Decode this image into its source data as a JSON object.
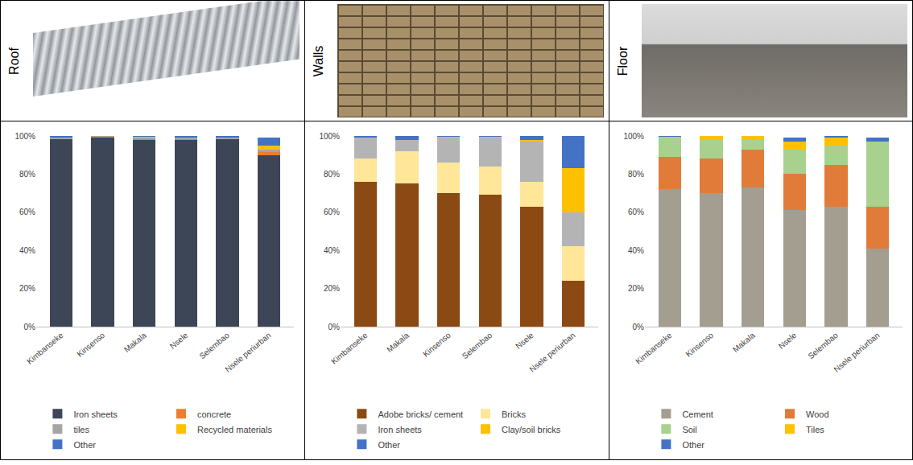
{
  "chart_data": [
    {
      "type": "bar",
      "title": "Roof",
      "stacked": true,
      "grid": false,
      "legend": "bottom",
      "categories": [
        "Kimbanseke",
        "Kinsenso",
        "Makala",
        "Nsele",
        "Selembao",
        "Nsele periurban"
      ],
      "ylim": [
        0,
        100
      ],
      "yticks": [
        {
          "value": 0,
          "label": "0%"
        },
        {
          "value": 20,
          "label": "20%"
        },
        {
          "value": 40,
          "label": "40%"
        },
        {
          "value": 60,
          "label": "60%"
        },
        {
          "value": 80,
          "label": "80%"
        },
        {
          "value": 100,
          "label": "100%"
        }
      ],
      "series": [
        {
          "name": "Iron sheets",
          "color": "#3c4657",
          "values": [
            98.5,
            99,
            98,
            98,
            98.5,
            90
          ]
        },
        {
          "name": "concrete",
          "color": "#ed7d31",
          "values": [
            0,
            0.5,
            0.5,
            0.5,
            0,
            1.5
          ]
        },
        {
          "name": "tiles",
          "color": "#a5a5a5",
          "values": [
            0.5,
            0.5,
            0.5,
            0.5,
            0.5,
            1.5
          ]
        },
        {
          "name": "Recycled materials",
          "color": "#ffc000",
          "values": [
            0,
            0,
            0.5,
            0,
            0,
            2
          ]
        },
        {
          "name": "Other",
          "color": "#4472c4",
          "values": [
            1,
            0,
            0.5,
            1,
            1,
            4
          ]
        }
      ]
    },
    {
      "type": "bar",
      "title": "Walls",
      "stacked": true,
      "grid": false,
      "legend": "bottom",
      "categories": [
        "Kimbanseke",
        "Makala",
        "Kinsenso",
        "Selembao",
        "Nsele",
        "Nsele periurban"
      ],
      "ylim": [
        0,
        100
      ],
      "yticks": [
        {
          "value": 0,
          "label": "0%"
        },
        {
          "value": 20,
          "label": "20%"
        },
        {
          "value": 40,
          "label": "40%"
        },
        {
          "value": 60,
          "label": "60%"
        },
        {
          "value": 80,
          "label": "80%"
        },
        {
          "value": 100,
          "label": "100%"
        }
      ],
      "series": [
        {
          "name": "Adobe bricks/ cement",
          "color": "#8b4a14",
          "values": [
            76,
            75,
            70,
            69,
            63,
            24
          ]
        },
        {
          "name": "Bricks",
          "color": "#ffe699",
          "values": [
            12,
            17,
            16,
            15,
            13,
            18
          ]
        },
        {
          "name": "Iron sheets",
          "color": "#b4b4b4",
          "values": [
            11,
            6,
            13,
            15,
            21,
            18
          ]
        },
        {
          "name": "Clay/soil bricks",
          "color": "#ffc000",
          "values": [
            0,
            0,
            0.5,
            0.5,
            1,
            23
          ]
        },
        {
          "name": "Other",
          "color": "#4472c4",
          "values": [
            1,
            2,
            0.5,
            0.5,
            2,
            17
          ]
        }
      ]
    },
    {
      "type": "bar",
      "title": "Floor",
      "stacked": true,
      "grid": false,
      "legend": "bottom",
      "categories": [
        "Kimbanseke",
        "Kinsenso",
        "Makala",
        "Nsele",
        "Selembao",
        "Nsele periurban"
      ],
      "ylim": [
        0,
        100
      ],
      "yticks": [
        {
          "value": 0,
          "label": "0%"
        },
        {
          "value": 20,
          "label": "20%"
        },
        {
          "value": 40,
          "label": "40%"
        },
        {
          "value": 60,
          "label": "60%"
        },
        {
          "value": 80,
          "label": "80%"
        },
        {
          "value": 100,
          "label": "100%"
        }
      ],
      "series": [
        {
          "name": "Cement",
          "color": "#a39e90",
          "values": [
            72,
            70,
            73,
            61,
            63,
            41
          ]
        },
        {
          "name": "Wood",
          "color": "#e07b39",
          "values": [
            17,
            18,
            20,
            19,
            22,
            22
          ]
        },
        {
          "name": "Soil",
          "color": "#a9d18e",
          "values": [
            10,
            10,
            5,
            13,
            10,
            34
          ]
        },
        {
          "name": "Tiles",
          "color": "#ffc000",
          "values": [
            0.5,
            2,
            2,
            4,
            4,
            0
          ]
        },
        {
          "name": "Other",
          "color": "#4472c4",
          "values": [
            0.5,
            0,
            0,
            2,
            1,
            2
          ]
        }
      ]
    }
  ]
}
